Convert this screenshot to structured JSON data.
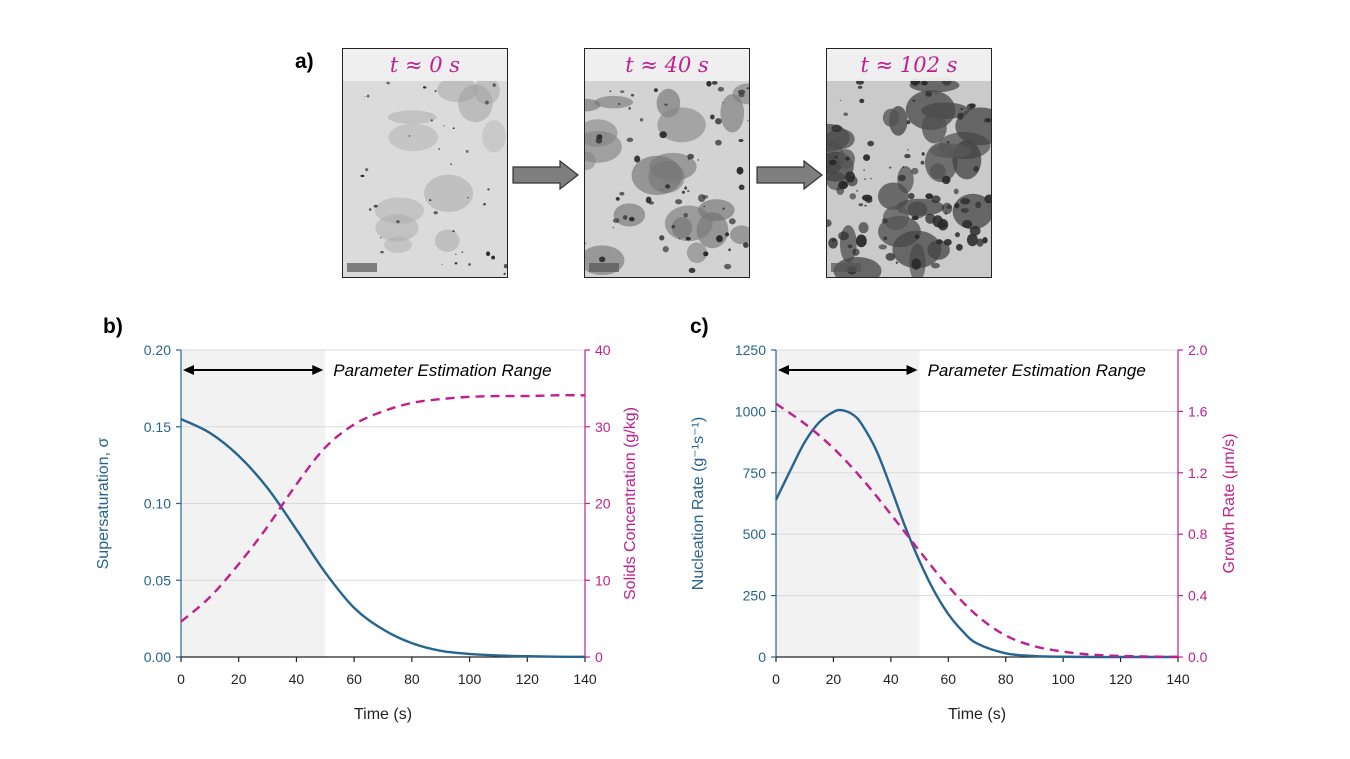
{
  "panel_a": {
    "label": "a)",
    "frames": [
      {
        "time_label": "t ≈ 0 s",
        "density": 0.15
      },
      {
        "time_label": "t ≈ 40 s",
        "density": 0.55
      },
      {
        "time_label": "t ≈ 102 s",
        "density": 1.0
      }
    ]
  },
  "colors": {
    "blue": "#27648f",
    "magenta": "#c0208f",
    "shade": "#f2f2f2",
    "grid": "#d9d9d9"
  },
  "chart_data": [
    {
      "panel": "b)",
      "type": "line",
      "xlabel": "Time (s)",
      "ylabel": "Supersaturation, σ",
      "y2label": "Solids Concentration (g/kg)",
      "xlim": [
        0,
        140
      ],
      "ylim": [
        0,
        0.2
      ],
      "y2lim": [
        0,
        40
      ],
      "xticks": [
        0,
        20,
        40,
        60,
        80,
        100,
        120,
        140
      ],
      "yticks": [
        "0.00",
        "0.05",
        "0.10",
        "0.15",
        "0.20"
      ],
      "y2ticks": [
        "0",
        "10",
        "20",
        "30",
        "40"
      ],
      "shaded_range": [
        0,
        50
      ],
      "annotation": "Parameter Estimation Range",
      "series": [
        {
          "name": "Supersaturation",
          "axis": "left",
          "style": "solid",
          "x": [
            0,
            10,
            20,
            30,
            40,
            50,
            60,
            70,
            80,
            90,
            100,
            110,
            120,
            130,
            140
          ],
          "values": [
            0.155,
            0.146,
            0.131,
            0.11,
            0.083,
            0.055,
            0.032,
            0.018,
            0.009,
            0.004,
            0.002,
            0.001,
            0.0005,
            0.0002,
            0.0001
          ]
        },
        {
          "name": "Solids Concentration",
          "axis": "right",
          "style": "dashed",
          "x": [
            0,
            10,
            20,
            30,
            40,
            50,
            60,
            70,
            80,
            90,
            100,
            110,
            120,
            130,
            140
          ],
          "values": [
            4.6,
            7.8,
            12.1,
            17.0,
            22.5,
            27.3,
            30.3,
            32.0,
            33.1,
            33.6,
            33.9,
            34.0,
            34.0,
            34.1,
            34.1
          ]
        }
      ]
    },
    {
      "panel": "c)",
      "type": "line",
      "xlabel": "Time (s)",
      "ylabel": "Nucleation Rate (g⁻¹s⁻¹)",
      "y2label": "Growth Rate (μm/s)",
      "xlim": [
        0,
        140
      ],
      "ylim": [
        0,
        1250
      ],
      "y2lim": [
        0,
        2.0
      ],
      "xticks": [
        0,
        20,
        40,
        60,
        80,
        100,
        120,
        140
      ],
      "yticks": [
        "0",
        "250",
        "500",
        "750",
        "1000",
        "1250"
      ],
      "y2ticks": [
        "0.0",
        "0.4",
        "0.8",
        "1.2",
        "1.6",
        "2.0"
      ],
      "shaded_range": [
        0,
        50
      ],
      "annotation": "Parameter Estimation Range",
      "series": [
        {
          "name": "Nucleation Rate",
          "axis": "left",
          "style": "solid",
          "x": [
            0,
            5,
            10,
            15,
            20,
            23,
            27,
            30,
            35,
            40,
            45,
            50,
            55,
            60,
            65,
            70,
            80,
            90,
            100,
            110,
            120,
            140
          ],
          "values": [
            640,
            760,
            875,
            955,
            998,
            1005,
            985,
            945,
            840,
            690,
            530,
            390,
            270,
            175,
            105,
            55,
            15,
            4,
            1,
            0,
            0,
            0
          ]
        },
        {
          "name": "Growth Rate",
          "axis": "right",
          "style": "dashed",
          "x": [
            0,
            10,
            20,
            30,
            40,
            50,
            60,
            70,
            80,
            90,
            100,
            110,
            120,
            130,
            140
          ],
          "values": [
            1.65,
            1.52,
            1.36,
            1.16,
            0.93,
            0.69,
            0.46,
            0.27,
            0.14,
            0.07,
            0.035,
            0.015,
            0.007,
            0.003,
            0.001
          ]
        }
      ]
    }
  ]
}
